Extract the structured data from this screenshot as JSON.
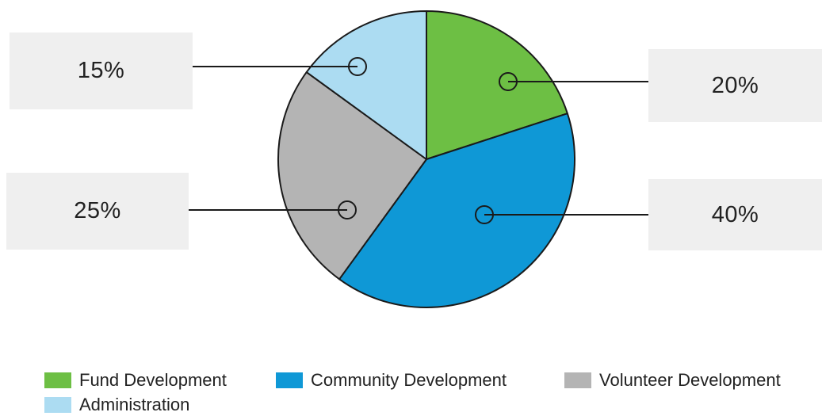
{
  "chart_data": {
    "type": "pie",
    "slices": [
      {
        "name": "Fund Development",
        "value": 20,
        "label": "20%",
        "color": "#6dbf44"
      },
      {
        "name": "Community Development",
        "value": 40,
        "label": "40%",
        "color": "#0f98d6"
      },
      {
        "name": "Volunteer Development",
        "value": 25,
        "label": "25%",
        "color": "#b4b4b4"
      },
      {
        "name": "Administration",
        "value": 15,
        "label": "15%",
        "color": "#acdcf2"
      }
    ],
    "start_angle_deg": 0,
    "direction": "clockwise",
    "legend_position": "bottom-left",
    "title": "",
    "callout_style": "leader lines to boxed percentage labels"
  }
}
